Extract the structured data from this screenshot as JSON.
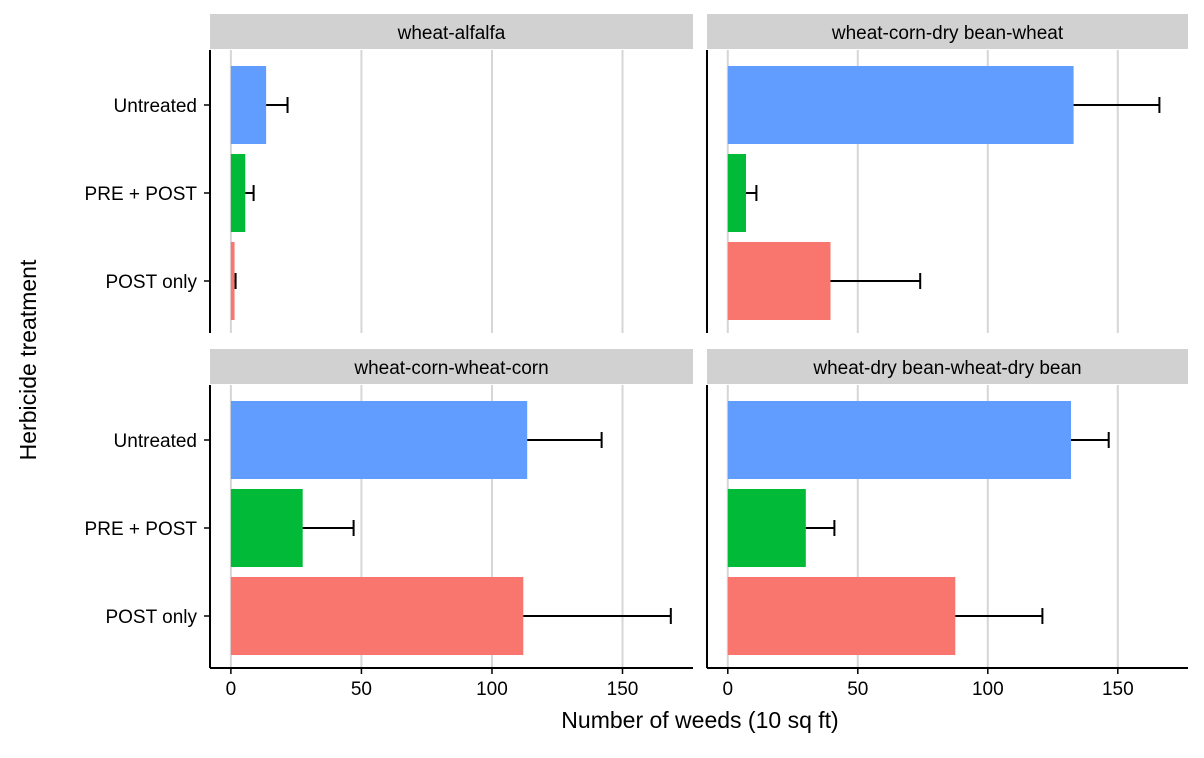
{
  "chart_data": {
    "type": "bar",
    "orientation": "horizontal",
    "xlabel": "Number of weeds (10 sq ft)",
    "ylabel": "Herbicide treatment",
    "xlim": [
      -8,
      177
    ],
    "xticks": [
      0,
      50,
      100,
      150
    ],
    "xtick_labels": [
      "0",
      "50",
      "100",
      "150"
    ],
    "categories": [
      "Untreated",
      "PRE + POST",
      "POST only"
    ],
    "colors": {
      "Untreated": "#619CFF",
      "PRE + POST": "#00BA38",
      "POST only": "#F8766D"
    },
    "grid": "vertical major",
    "panels": [
      {
        "title": "wheat-alfalfa",
        "values": [
          13.5,
          5.5,
          1.4
        ],
        "error_upper": [
          21.7,
          8.7,
          1.8
        ]
      },
      {
        "title": "wheat-corn-dry bean-wheat",
        "values": [
          133,
          7,
          39.5
        ],
        "error_upper": [
          166,
          11,
          74
        ]
      },
      {
        "title": "wheat-corn-wheat-corn",
        "values": [
          113.5,
          27.5,
          112
        ],
        "error_upper": [
          142,
          47,
          168.5
        ]
      },
      {
        "title": "wheat-dry bean-wheat-dry bean",
        "values": [
          132,
          30,
          87.5
        ],
        "error_upper": [
          146.5,
          41,
          121
        ]
      }
    ]
  }
}
